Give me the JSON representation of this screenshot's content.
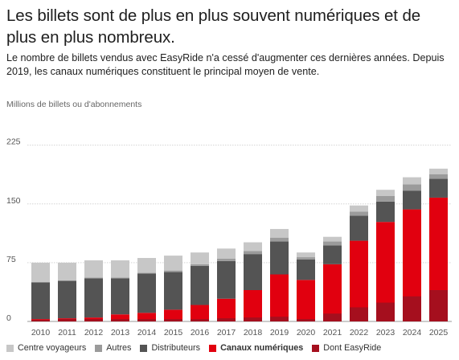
{
  "title": "Les billets sont de plus en plus souvent numériques et de plus en plus nombreux.",
  "subtitle": "Le nombre de billets vendus avec EasyRide n'a cessé d'augmenter ces dernières années. Depuis 2019, les canaux numériques constituent le principal moyen de vente.",
  "chart_data": {
    "type": "bar",
    "stacked": true,
    "ylabel": "Millions de billets ou d'abonnements",
    "ylim": [
      0,
      240
    ],
    "yticks": [
      0,
      75,
      150,
      225
    ],
    "grid": true,
    "legend_position": "bottom",
    "categories": [
      "2010",
      "2011",
      "2012",
      "2013",
      "2014",
      "2015",
      "2016",
      "2017",
      "2018",
      "2019",
      "2020",
      "2021",
      "2022",
      "2023",
      "2024",
      "2025"
    ],
    "series": [
      {
        "name": "Dont EasyRide",
        "color": "#a50f1e",
        "values": [
          2,
          3,
          3,
          3,
          3,
          3,
          3,
          4,
          5,
          6,
          3,
          10,
          18,
          24,
          32,
          40
        ]
      },
      {
        "name": "Canaux numériques",
        "color": "#e1000f",
        "values": [
          3,
          4,
          5,
          9,
          11,
          15,
          21,
          29,
          40,
          60,
          53,
          73,
          103,
          127,
          143,
          158
        ]
      },
      {
        "name": "Distributeurs",
        "color": "#545454",
        "values": [
          47,
          48,
          50,
          46,
          50,
          48,
          50,
          48,
          46,
          42,
          26,
          24,
          32,
          26,
          24,
          24
        ]
      },
      {
        "name": "Autres",
        "color": "#9b9b9b",
        "values": [
          0,
          0,
          1,
          1,
          1,
          2,
          2,
          3,
          4,
          5,
          3,
          5,
          5,
          7,
          8,
          6
        ]
      },
      {
        "name": "Centre voyageurs",
        "color": "#c7c7c7",
        "values": [
          25,
          23,
          22,
          22,
          19,
          19,
          15,
          13,
          11,
          11,
          6,
          6,
          8,
          8,
          9,
          7
        ]
      }
    ],
    "legend_order": [
      "Centre voyageurs",
      "Autres",
      "Distributeurs",
      "Canaux numériques",
      "Dont EasyRide"
    ],
    "legend_bold": [
      "Canaux numériques"
    ]
  }
}
